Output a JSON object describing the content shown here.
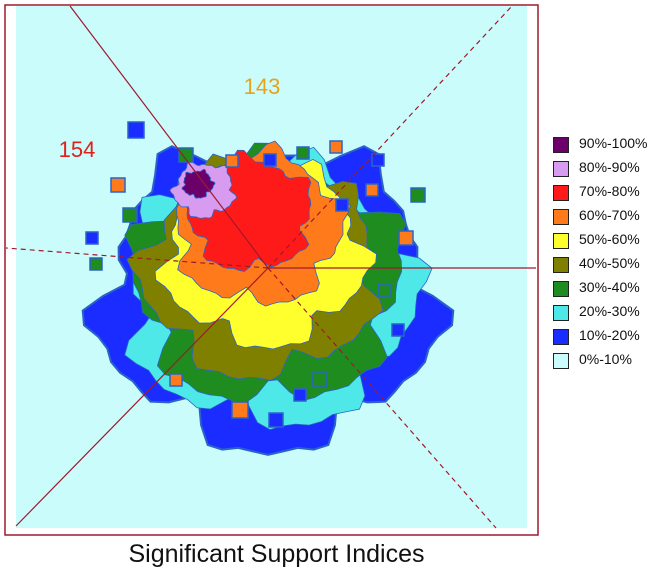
{
  "chart_data": {
    "type": "heatmap",
    "title": "Significant Support Indices",
    "annotations": [
      {
        "text": "143",
        "color": "#e8a317"
      },
      {
        "text": "154",
        "color": "#e0201b"
      }
    ],
    "legend": {
      "placement": "right",
      "entries": [
        {
          "label": "90%-100%",
          "color": "#6b006b"
        },
        {
          "label": "80%-90%",
          "color": "#d79cf0"
        },
        {
          "label": "70%-80%",
          "color": "#ff1a1a"
        },
        {
          "label": "60%-70%",
          "color": "#ff7a1a"
        },
        {
          "label": "50%-60%",
          "color": "#ffff2e"
        },
        {
          "label": "40%-50%",
          "color": "#808000"
        },
        {
          "label": "30%-40%",
          "color": "#1f8c1f"
        },
        {
          "label": "20%-30%",
          "color": "#4ee8e8"
        },
        {
          "label": "10%-20%",
          "color": "#1a2cff"
        },
        {
          "label": "0%-10%",
          "color": "#cbfcfc"
        }
      ]
    },
    "background_color": "#cbfcfc",
    "frame_color": "#a0192d"
  }
}
